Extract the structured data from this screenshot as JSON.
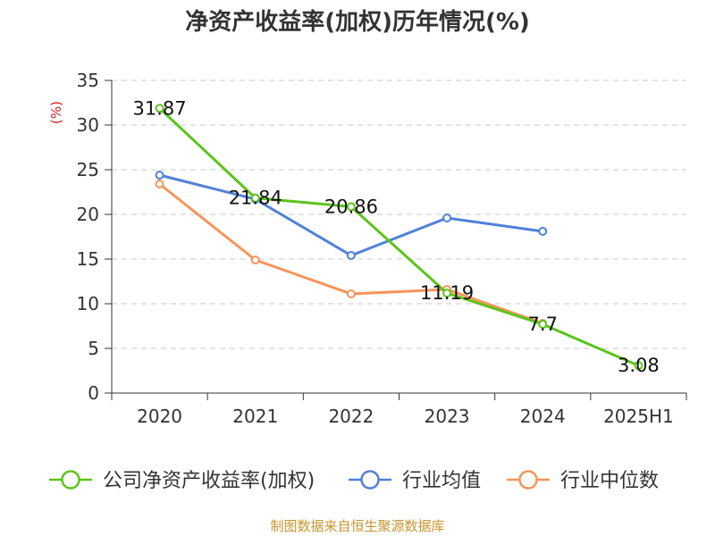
{
  "source_note": "制图数据来自恒生聚源数据库",
  "chart_data": {
    "type": "line",
    "title": "净资产收益率(加权)历年情况(%)",
    "ylabel": "(%)",
    "xlabel": "",
    "categories": [
      "2020",
      "2021",
      "2022",
      "2023",
      "2024",
      "2025H1"
    ],
    "ylim": [
      0,
      35
    ],
    "yticks": [
      0,
      5,
      10,
      15,
      20,
      25,
      30,
      35
    ],
    "grid": "horizontal-dashed",
    "legend_position": "bottom",
    "series": [
      {
        "name": "公司净资产收益率(加权)",
        "color": "#5cc41a",
        "values": [
          31.87,
          21.84,
          20.86,
          11.19,
          7.7,
          3.08
        ],
        "labels": [
          "31.87",
          "21.84",
          "20.86",
          "11.19",
          "7.7",
          "3.08"
        ]
      },
      {
        "name": "行业均值",
        "color": "#4f81d9",
        "values": [
          24.4,
          21.7,
          15.4,
          19.6,
          18.1,
          null
        ]
      },
      {
        "name": "行业中位数",
        "color": "#f79459",
        "values": [
          23.4,
          14.9,
          11.1,
          11.6,
          7.8,
          null
        ]
      }
    ]
  }
}
